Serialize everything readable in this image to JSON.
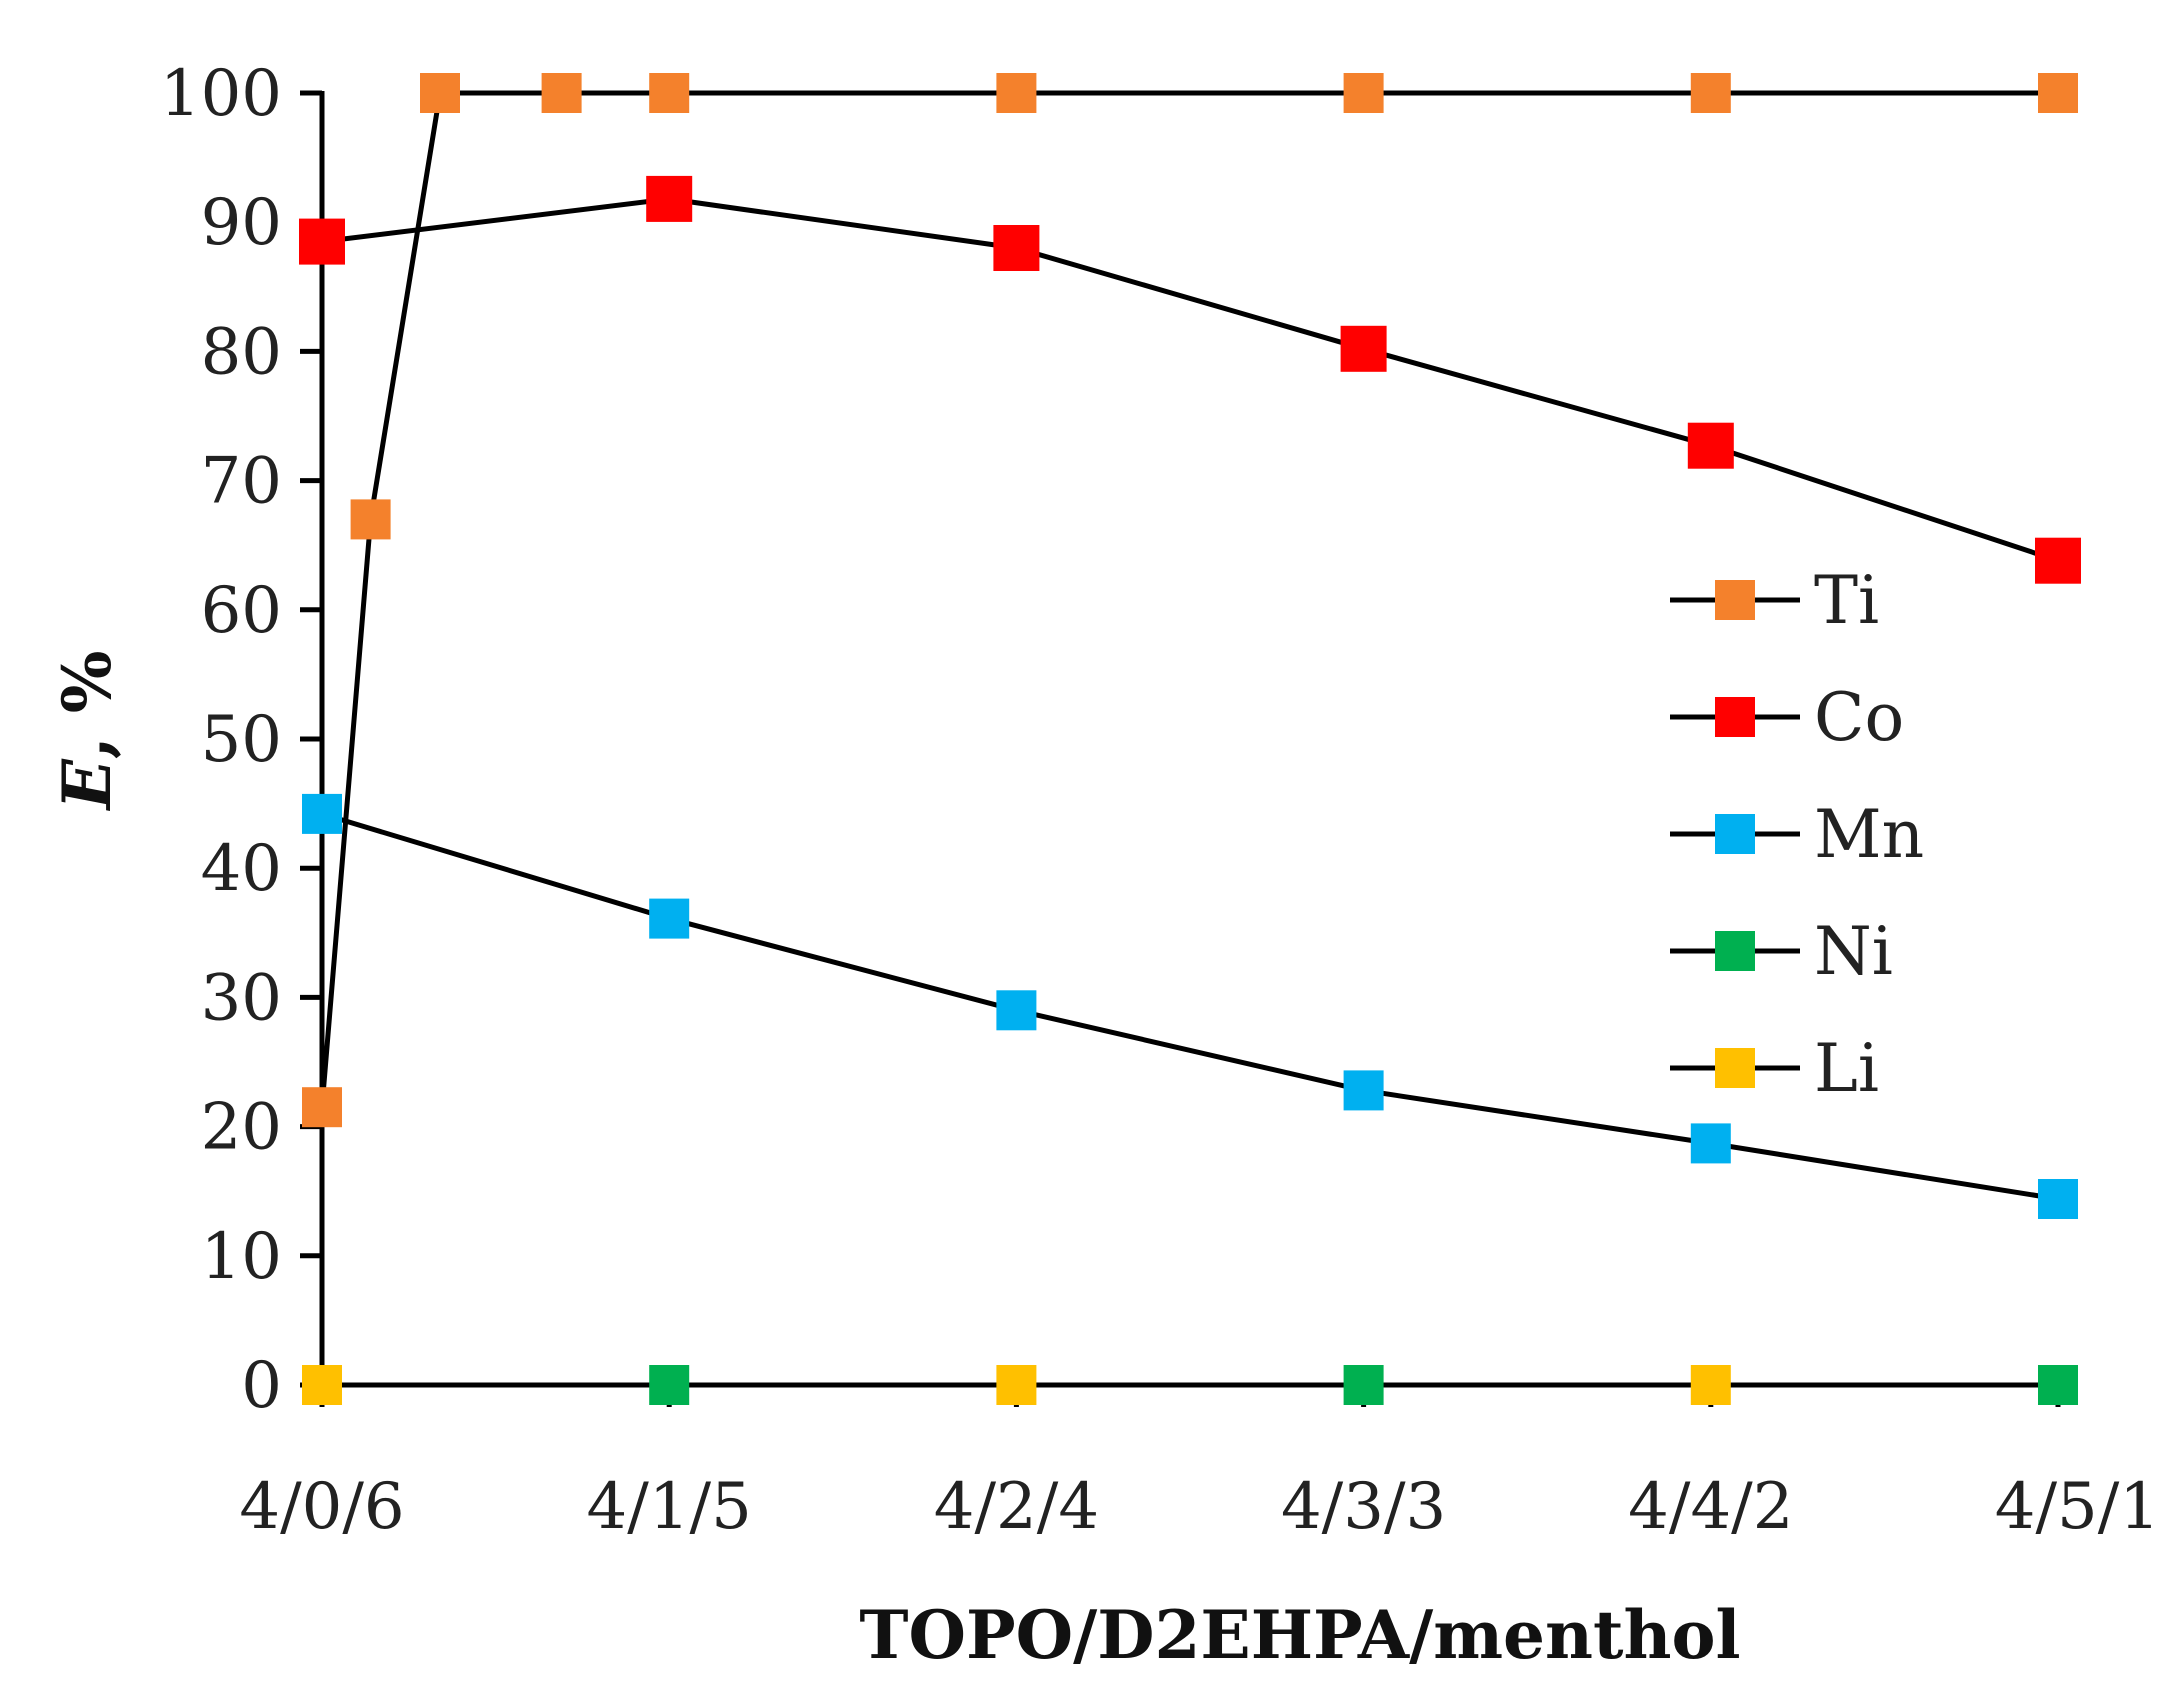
{
  "chart_data": {
    "type": "line",
    "title": "",
    "xlabel": "TOPO/D2EHPA/menthol",
    "ylabel_italic": "E",
    "ylabel_rest": ", %",
    "ylim": [
      0,
      100
    ],
    "yticks": [
      0,
      10,
      20,
      30,
      40,
      50,
      60,
      70,
      80,
      90,
      100
    ],
    "xlim": [
      0,
      5
    ],
    "categories": [
      "4/0/6",
      "4/1/5",
      "4/2/4",
      "4/3/3",
      "4/4/2",
      "4/5/1"
    ],
    "grid": false,
    "legend_position": "right",
    "series": [
      {
        "name": "Ti",
        "color": "#F4812C",
        "points": [
          [
            0,
            21.5
          ],
          [
            0.14,
            67
          ],
          [
            0.34,
            100
          ],
          [
            0.69,
            100
          ],
          [
            1,
            100
          ],
          [
            2,
            100
          ],
          [
            3,
            100
          ],
          [
            4,
            100
          ],
          [
            5,
            100
          ]
        ]
      },
      {
        "name": "Co",
        "color": "#FF0000",
        "points": [
          [
            0,
            88.5
          ],
          [
            1,
            91.8
          ],
          [
            2,
            88
          ],
          [
            3,
            80.2
          ],
          [
            4,
            72.7
          ],
          [
            5,
            63.8
          ]
        ]
      },
      {
        "name": "Mn",
        "color": "#00B0F0",
        "points": [
          [
            0,
            44.2
          ],
          [
            1,
            36.1
          ],
          [
            2,
            29
          ],
          [
            3,
            22.8
          ],
          [
            4,
            18.7
          ],
          [
            5,
            14.4
          ]
        ]
      },
      {
        "name": "Ni",
        "color": "#00B050",
        "points": [
          [
            0,
            0
          ],
          [
            1,
            0
          ],
          [
            2,
            0
          ],
          [
            3,
            0
          ],
          [
            4,
            0
          ],
          [
            5,
            0
          ]
        ]
      },
      {
        "name": "Li",
        "color": "#FFC000",
        "points": [
          [
            0,
            0
          ],
          [
            1,
            0
          ],
          [
            2,
            0
          ],
          [
            3,
            0
          ],
          [
            4,
            0
          ],
          [
            5,
            0
          ]
        ]
      }
    ],
    "marker_visibility": {
      "Ni": [
        false,
        true,
        false,
        true,
        false,
        true
      ],
      "Li": [
        true,
        false,
        true,
        false,
        true,
        false
      ]
    }
  }
}
